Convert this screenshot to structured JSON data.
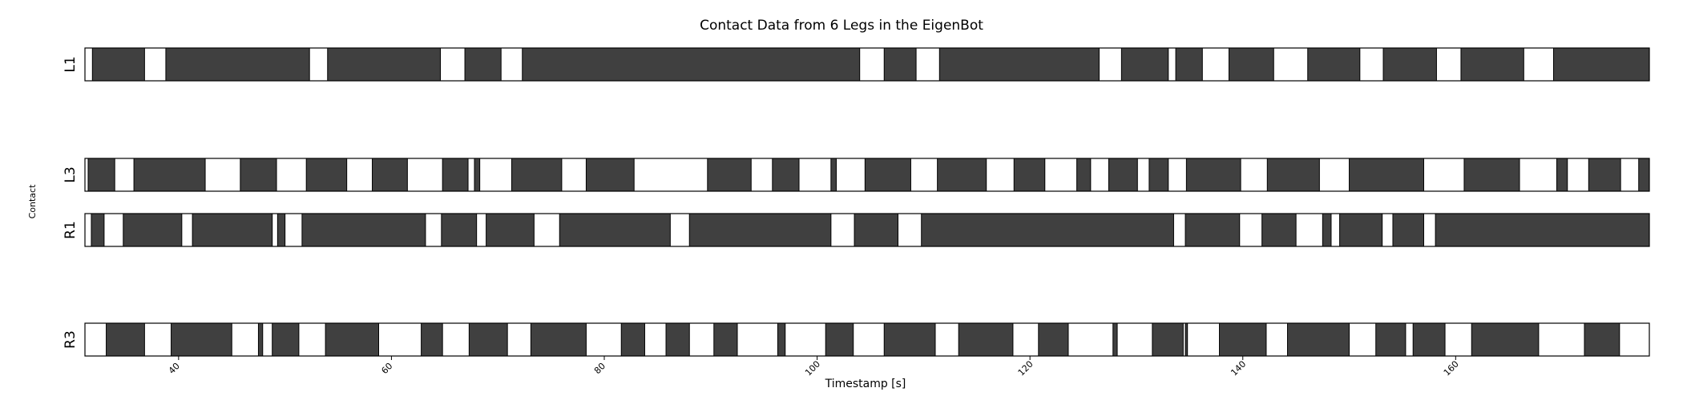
{
  "chart_data": {
    "type": "contact-timeline",
    "title": "Contact Data from 6 Legs in the EigenBot",
    "xlabel": "Timestamp [s]",
    "ylabel": "Contact",
    "xlim": [
      31.2,
      178.2
    ],
    "xticks": [
      40,
      60,
      80,
      100,
      120,
      140,
      160
    ],
    "colors": {
      "contact": "#404040",
      "no_contact": "#ffffff",
      "edge": "#000000"
    },
    "legs": [
      {
        "label": "L1",
        "contact_intervals": [
          [
            31.9,
            36.8
          ],
          [
            38.8,
            52.3
          ],
          [
            54.0,
            64.6
          ],
          [
            66.9,
            70.3
          ],
          [
            72.3,
            104.0
          ],
          [
            106.3,
            109.3
          ],
          [
            111.5,
            126.5
          ],
          [
            128.6,
            133.0
          ],
          [
            133.7,
            136.2
          ],
          [
            138.7,
            142.9
          ],
          [
            146.1,
            151.0
          ],
          [
            153.2,
            158.2
          ],
          [
            160.5,
            166.4
          ],
          [
            169.2,
            178.2
          ]
        ]
      },
      {
        "label": "L3",
        "contact_intervals": [
          [
            31.5,
            34.0
          ],
          [
            35.8,
            42.5
          ],
          [
            45.8,
            49.2
          ],
          [
            52.0,
            55.8
          ],
          [
            58.2,
            61.5
          ],
          [
            64.8,
            67.2
          ],
          [
            67.8,
            68.3
          ],
          [
            71.3,
            76.0
          ],
          [
            78.3,
            82.8
          ],
          [
            89.7,
            93.8
          ],
          [
            95.8,
            98.3
          ],
          [
            101.3,
            101.8
          ],
          [
            104.5,
            108.8
          ],
          [
            111.3,
            115.9
          ],
          [
            118.5,
            121.4
          ],
          [
            124.4,
            125.7
          ],
          [
            127.4,
            130.1
          ],
          [
            131.2,
            133.0
          ],
          [
            134.7,
            139.8
          ],
          [
            142.3,
            147.2
          ],
          [
            150.0,
            157.0
          ],
          [
            160.8,
            166.0
          ],
          [
            169.5,
            170.5
          ],
          [
            172.5,
            175.5
          ],
          [
            177.2,
            178.2
          ]
        ]
      },
      {
        "label": "R1",
        "contact_intervals": [
          [
            31.8,
            33.0
          ],
          [
            34.8,
            40.3
          ],
          [
            41.3,
            48.8
          ],
          [
            49.3,
            50.0
          ],
          [
            51.6,
            63.2
          ],
          [
            64.7,
            68.0
          ],
          [
            68.9,
            73.4
          ],
          [
            75.8,
            86.2
          ],
          [
            88.0,
            101.3
          ],
          [
            103.5,
            107.6
          ],
          [
            109.8,
            133.5
          ],
          [
            134.6,
            139.7
          ],
          [
            141.8,
            145.0
          ],
          [
            147.5,
            148.3
          ],
          [
            149.1,
            153.1
          ],
          [
            154.1,
            157.0
          ],
          [
            158.1,
            178.2
          ]
        ]
      },
      {
        "label": "R3",
        "contact_intervals": [
          [
            33.2,
            36.8
          ],
          [
            39.3,
            45.0
          ],
          [
            47.5,
            47.9
          ],
          [
            48.8,
            51.3
          ],
          [
            53.8,
            58.8
          ],
          [
            62.8,
            64.8
          ],
          [
            67.3,
            70.9
          ],
          [
            73.1,
            78.3
          ],
          [
            81.6,
            83.8
          ],
          [
            85.8,
            88.0
          ],
          [
            90.3,
            92.5
          ],
          [
            96.3,
            97.0
          ],
          [
            100.8,
            103.4
          ],
          [
            106.3,
            111.1
          ],
          [
            113.3,
            118.4
          ],
          [
            120.8,
            123.6
          ],
          [
            127.8,
            128.2
          ],
          [
            131.5,
            134.4
          ],
          [
            134.6,
            134.8
          ],
          [
            137.8,
            142.2
          ],
          [
            144.2,
            150.0
          ],
          [
            152.5,
            155.3
          ],
          [
            156.0,
            159.0
          ],
          [
            161.5,
            167.8
          ],
          [
            172.1,
            175.4
          ]
        ]
      }
    ]
  }
}
